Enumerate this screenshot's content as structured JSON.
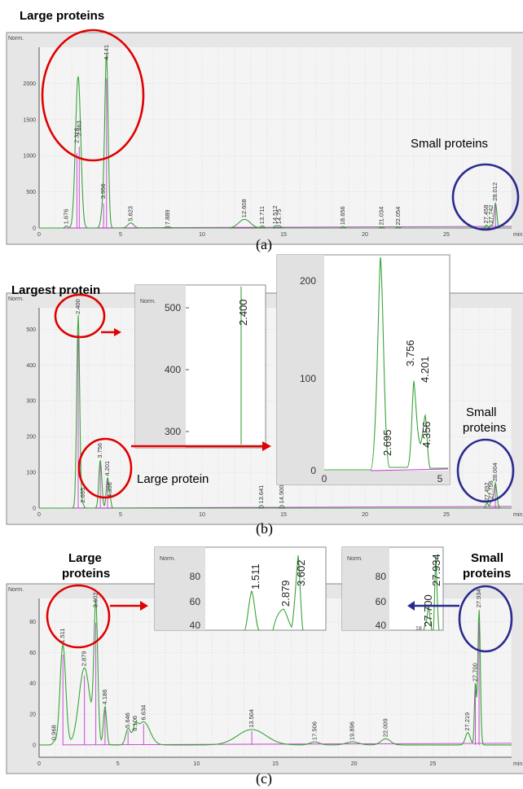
{
  "chart_data": [
    {
      "panel": "(a)",
      "type": "line",
      "ylabel": "Norm.",
      "xlabel": "min",
      "xlim": [
        0,
        29
      ],
      "ylim": [
        0,
        2500
      ],
      "x_ticks": [
        "0",
        "5",
        "10",
        "15",
        "20",
        "25"
      ],
      "y_ticks": [
        "0",
        "500",
        "1000",
        "1500",
        "2000"
      ],
      "peaks": [
        {
          "x": 1.676,
          "y": 30,
          "label": "1.676"
        },
        {
          "x": 2.318,
          "y": 1150,
          "label": "2.318"
        },
        {
          "x": 2.463,
          "y": 1250,
          "label": "2.463"
        },
        {
          "x": 3.956,
          "y": 380,
          "label": "3.956"
        },
        {
          "x": 4.141,
          "y": 2300,
          "label": "4.141"
        },
        {
          "x": 5.623,
          "y": 70,
          "label": "5.623"
        },
        {
          "x": 7.889,
          "y": 20,
          "label": "7.889"
        },
        {
          "x": 12.608,
          "y": 120,
          "label": "12.608"
        },
        {
          "x": 13.711,
          "y": 30,
          "label": "13.711"
        },
        {
          "x": 14.512,
          "y": 30,
          "label": "14.512"
        },
        {
          "x": 14.75,
          "y": 30,
          "label": "14.75"
        },
        {
          "x": 18.656,
          "y": 20,
          "label": "18.656"
        },
        {
          "x": 21.034,
          "y": 15,
          "label": "21.034"
        },
        {
          "x": 22.054,
          "y": 15,
          "label": "22.054"
        },
        {
          "x": 27.458,
          "y": 40,
          "label": "27.458"
        },
        {
          "x": 27.742,
          "y": 40,
          "label": "27.742"
        },
        {
          "x": 28.012,
          "y": 350,
          "label": "28.012"
        }
      ],
      "annotations": [
        "Large proteins",
        "Small proteins"
      ],
      "caption": "(a)"
    },
    {
      "panel": "(b)",
      "type": "line",
      "ylabel": "Norm.",
      "xlabel": "min",
      "xlim": [
        0,
        29
      ],
      "ylim": [
        0,
        560
      ],
      "x_ticks": [
        "0",
        "5",
        "10",
        "15",
        "20",
        "25"
      ],
      "y_ticks": [
        "0",
        "100",
        "200",
        "300",
        "400",
        "500"
      ],
      "peaks": [
        {
          "x": 2.4,
          "y": 540,
          "label": "2.400"
        },
        {
          "x": 2.695,
          "y": 10,
          "label": "2.695"
        },
        {
          "x": 3.756,
          "y": 135,
          "label": "3.756"
        },
        {
          "x": 4.201,
          "y": 85,
          "label": "4.201"
        },
        {
          "x": 4.356,
          "y": 25,
          "label": "4.356"
        },
        {
          "x": 13.641,
          "y": 8,
          "label": "13.641"
        },
        {
          "x": 14.9,
          "y": 8,
          "label": "14.900"
        },
        {
          "x": 27.492,
          "y": 15,
          "label": "27.492"
        },
        {
          "x": 27.756,
          "y": 20,
          "label": "27.756"
        },
        {
          "x": 28.004,
          "y": 70,
          "label": "28.004"
        }
      ],
      "insets": [
        {
          "ylabel": "Norm.",
          "y_ticks": [
            "300",
            "400",
            "500"
          ],
          "peak_label": "2.400"
        },
        {
          "y_ticks": [
            "0",
            "100",
            "200"
          ],
          "x_ticks": [
            "0",
            "5"
          ],
          "peak_labels": [
            "2.695",
            "3.756",
            "4.201",
            "4.356"
          ]
        }
      ],
      "annotations": [
        "Largest protein",
        "Large protein",
        "Small",
        "proteins"
      ],
      "caption": "(b)"
    },
    {
      "panel": "(c)",
      "type": "line",
      "ylabel": "Norm.",
      "xlabel": "min",
      "xlim": [
        0,
        30
      ],
      "ylim": [
        -8,
        95
      ],
      "x_ticks": [
        "0",
        "5",
        "10",
        "15",
        "20",
        "25"
      ],
      "y_ticks": [
        "0",
        "20",
        "40",
        "60",
        "80"
      ],
      "peaks": [
        {
          "x": 0.968,
          "y": 2,
          "label": "0.968"
        },
        {
          "x": 1.511,
          "y": 65,
          "label": "1.511"
        },
        {
          "x": 2.879,
          "y": 50,
          "label": "2.879"
        },
        {
          "x": 3.602,
          "y": 88,
          "label": "3.602"
        },
        {
          "x": 4.186,
          "y": 25,
          "label": "4.186"
        },
        {
          "x": 5.646,
          "y": 10,
          "label": "5.646"
        },
        {
          "x": 6.106,
          "y": 8,
          "label": "6.106"
        },
        {
          "x": 6.634,
          "y": 15,
          "label": "6.634"
        },
        {
          "x": 13.504,
          "y": 10,
          "label": "13.504"
        },
        {
          "x": 17.506,
          "y": 2,
          "label": "17.506"
        },
        {
          "x": 19.896,
          "y": 2,
          "label": "19.896"
        },
        {
          "x": 22.009,
          "y": 4,
          "label": "22.009"
        },
        {
          "x": 27.219,
          "y": 8,
          "label": "27.219"
        },
        {
          "x": 27.7,
          "y": 40,
          "label": "27.700"
        },
        {
          "x": 27.934,
          "y": 88,
          "label": "27.934"
        }
      ],
      "insets": [
        {
          "ylabel": "Norm.",
          "y_ticks": [
            "40",
            "60",
            "80"
          ],
          "peak_labels": [
            "1.511",
            "2.879",
            "3.602"
          ]
        },
        {
          "ylabel": "Norm.",
          "y_ticks": [
            "40",
            "60",
            "80"
          ],
          "peak_labels": [
            "27.700",
            "27.934"
          ],
          "extra": "18"
        }
      ],
      "annotations": [
        "Large",
        "proteins",
        "Small",
        "proteins"
      ],
      "caption": "(c)"
    }
  ],
  "labels": {
    "a_large": "Large proteins",
    "a_small": "Small proteins",
    "b_largest": "Largest protein",
    "b_large": "Large protein",
    "b_small1": "Small",
    "b_small2": "proteins",
    "c_large1": "Large",
    "c_large2": "proteins",
    "c_small1": "Small",
    "c_small2": "proteins",
    "norm": "Norm.",
    "min": "min",
    "cap_a": "(a)",
    "cap_b": "(b)",
    "cap_c": "(c)",
    "inset_b1_y": [
      "300",
      "400",
      "500"
    ],
    "inset_b1_peak": "2.400",
    "inset_b2_y": [
      "0",
      "100",
      "200"
    ],
    "inset_b2_x": [
      "0",
      "5"
    ],
    "inset_b2_peaks": [
      "2.695",
      "3.756",
      "4.201",
      "4.356"
    ],
    "inset_c1_y": [
      "40",
      "60",
      "80"
    ],
    "inset_c1_peaks": [
      "1.511",
      "2.879",
      "3.602"
    ],
    "inset_c2_y": [
      "40",
      "60",
      "80"
    ],
    "inset_c2_peaks": [
      "27.700",
      "27.934"
    ],
    "inset_c2_extra": "18"
  }
}
